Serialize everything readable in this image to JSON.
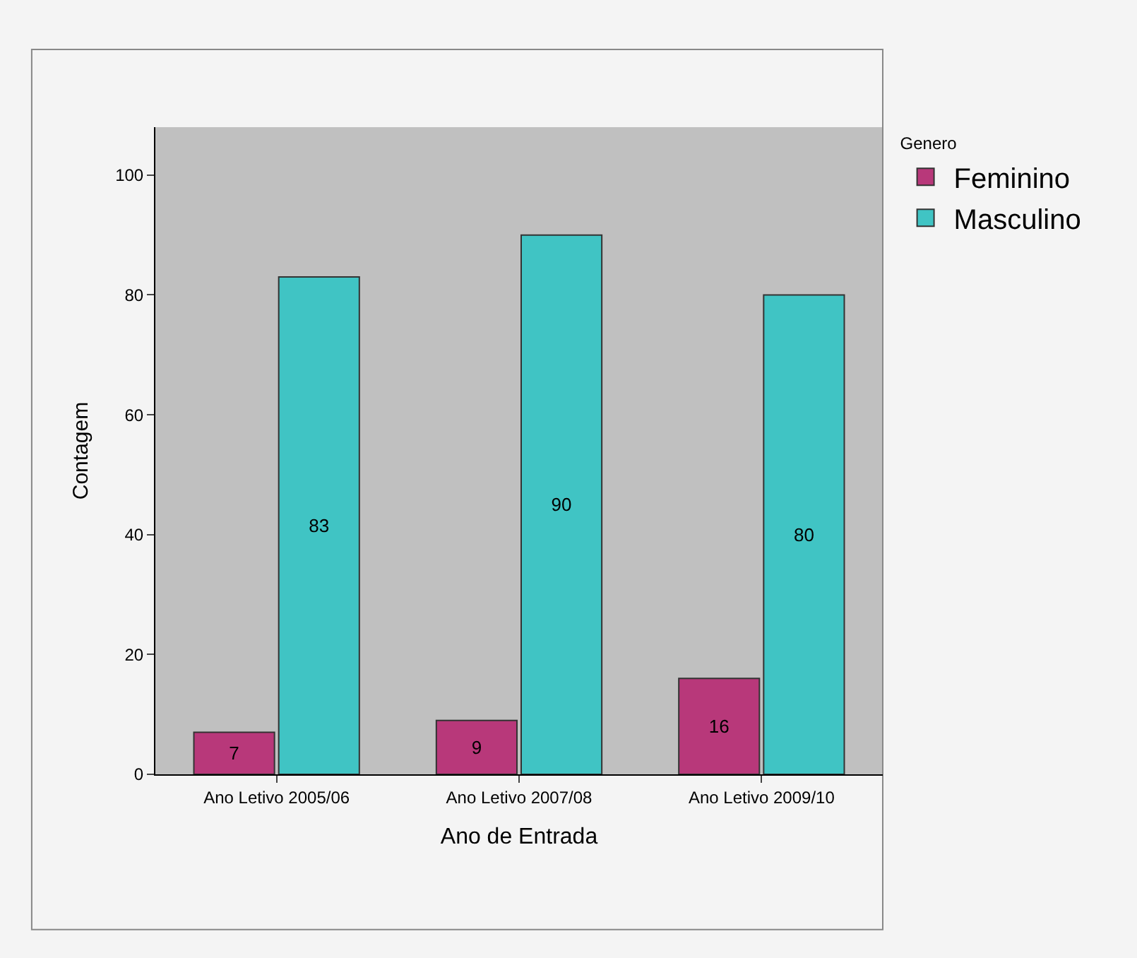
{
  "chart_data": {
    "type": "bar",
    "xlabel": "Ano de Entrada",
    "ylabel": "Contagem",
    "legend_title": "Genero",
    "legend": "top right",
    "categories": [
      "Ano Letivo 2005/06",
      "Ano Letivo 2007/08",
      "Ano Letivo 2009/10"
    ],
    "series": [
      {
        "name": "Feminino",
        "color": "#b8387a",
        "values": [
          7,
          9,
          16
        ]
      },
      {
        "name": "Masculino",
        "color": "#40c4c4",
        "values": [
          83,
          90,
          80
        ]
      }
    ],
    "ylim": [
      0,
      108
    ],
    "yticks": [
      0,
      20,
      40,
      60,
      80,
      100
    ],
    "grid": false,
    "data_labels": true
  }
}
